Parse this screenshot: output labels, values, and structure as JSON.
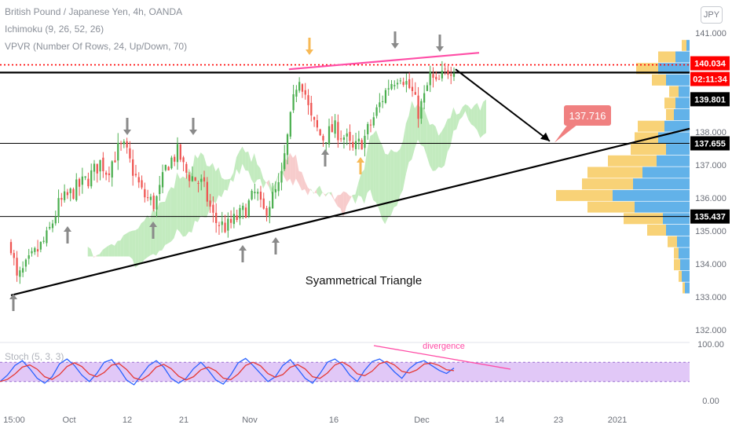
{
  "header": {
    "symbol_line": "British Pound / Japanese Yen, 4h, OANDA",
    "ichimoku_line": "Ichimoku (9, 26, 52, 26)",
    "vpvr_line": "VPVR (Number Of Rows, 24, Up/Down, 70)",
    "currency_badge": "JPY",
    "stoch_label": "Stoch (5, 3, 3)"
  },
  "colors": {
    "up_candle": "#26a69a",
    "bullish_candle": "#4caf50",
    "bearish_candle": "#ef5350",
    "cloud_bullish": "#b9e8b4",
    "cloud_bearish": "#f6c3c3",
    "pink_trendline": "#ff4da6",
    "vpvr_up": "#5aaee8",
    "vpvr_down": "#f8d070",
    "stoch_band": "#e1c8f7",
    "stoch_k": "#2962ff",
    "stoch_d": "#e53935",
    "arrow_gray": "#8a8a8a",
    "arrow_orange": "#f7b955",
    "target_label": "#f08080"
  },
  "annotations": {
    "pattern_label": "Syammetrical Triangle",
    "target_value": "137.716",
    "divergence_label": "divergence"
  },
  "price_axis": {
    "ticks": [
      "141.000",
      "140.000",
      "139.000",
      "138.000",
      "137.000",
      "136.000",
      "135.000",
      "134.000",
      "133.000",
      "132.000"
    ],
    "labels": {
      "last_price": "140.034",
      "countdown": "02:11:34",
      "resistance": "139.801",
      "mid_level": "137.655",
      "support": "135.437"
    }
  },
  "stoch_axis": {
    "ticks": [
      "100.00",
      "0.00"
    ]
  },
  "time_axis": {
    "ticks": [
      "15:00",
      "Oct",
      "12",
      "21",
      "Nov",
      "16",
      "Dec",
      "14",
      "23",
      "2021"
    ]
  },
  "chart_data": {
    "type": "candlestick",
    "title": "British Pound / Japanese Yen, 4h, OANDA",
    "ylim": [
      132.0,
      141.6
    ],
    "horizontal_levels": [
      {
        "value": 140.034,
        "style": "dotted",
        "color": "#ff0000"
      },
      {
        "value": 139.801,
        "style": "solid",
        "color": "#000000"
      },
      {
        "value": 137.655,
        "style": "solid",
        "color": "#000000"
      },
      {
        "value": 135.437,
        "style": "solid",
        "color": "#000000"
      }
    ],
    "trendlines": [
      {
        "name": "rising support",
        "from": {
          "date": "2020-09-24",
          "price": 133.05
        },
        "to": {
          "date": "2021-01-04",
          "price": 138.1
        }
      },
      {
        "name": "upper resistance",
        "from": {
          "date": "2020-11-11",
          "price": 139.9
        },
        "to": {
          "date": "2020-12-10",
          "price": 140.4
        }
      },
      {
        "name": "projected drop",
        "from": {
          "date": "2020-12-08",
          "price": 139.9
        },
        "to": {
          "date": "2020-12-20",
          "price": 137.7
        }
      }
    ],
    "target": {
      "price": 137.716
    },
    "price_path": [
      {
        "d": "2020-09-24",
        "p": 134.6
      },
      {
        "d": "2020-09-25",
        "p": 133.5
      },
      {
        "d": "2020-09-28",
        "p": 134.3
      },
      {
        "d": "2020-09-30",
        "p": 134.8
      },
      {
        "d": "2020-10-02",
        "p": 135.8
      },
      {
        "d": "2020-10-05",
        "p": 136.3
      },
      {
        "d": "2020-10-07",
        "p": 136.6
      },
      {
        "d": "2020-10-09",
        "p": 137.1
      },
      {
        "d": "2020-10-10",
        "p": 136.8
      },
      {
        "d": "2020-10-12",
        "p": 137.5
      },
      {
        "d": "2020-10-13",
        "p": 137.5
      },
      {
        "d": "2020-10-14",
        "p": 137.0
      },
      {
        "d": "2020-10-16",
        "p": 136.1
      },
      {
        "d": "2020-10-18",
        "p": 135.8
      },
      {
        "d": "2020-10-19",
        "p": 136.3
      },
      {
        "d": "2020-10-20",
        "p": 137.0
      },
      {
        "d": "2020-10-22",
        "p": 137.4
      },
      {
        "d": "2020-10-23",
        "p": 136.8
      },
      {
        "d": "2020-10-26",
        "p": 136.4
      },
      {
        "d": "2020-10-28",
        "p": 135.3
      },
      {
        "d": "2020-10-30",
        "p": 135.1
      },
      {
        "d": "2020-11-02",
        "p": 135.6
      },
      {
        "d": "2020-11-04",
        "p": 136.2
      },
      {
        "d": "2020-11-05",
        "p": 135.5
      },
      {
        "d": "2020-11-06",
        "p": 135.8
      },
      {
        "d": "2020-11-08",
        "p": 136.4
      },
      {
        "d": "2020-11-09",
        "p": 137.6
      },
      {
        "d": "2020-11-11",
        "p": 139.8
      },
      {
        "d": "2020-11-12",
        "p": 139.3
      },
      {
        "d": "2020-11-13",
        "p": 138.4
      },
      {
        "d": "2020-11-15",
        "p": 137.8
      },
      {
        "d": "2020-11-17",
        "p": 138.1
      },
      {
        "d": "2020-11-19",
        "p": 137.8
      },
      {
        "d": "2020-11-20",
        "p": 137.4
      },
      {
        "d": "2020-11-22",
        "p": 137.8
      },
      {
        "d": "2020-11-24",
        "p": 138.6
      },
      {
        "d": "2020-11-26",
        "p": 139.4
      },
      {
        "d": "2020-11-28",
        "p": 139.8
      },
      {
        "d": "2020-11-30",
        "p": 139.2
      },
      {
        "d": "2020-12-01",
        "p": 138.6
      },
      {
        "d": "2020-12-02",
        "p": 139.0
      },
      {
        "d": "2020-12-03",
        "p": 139.7
      },
      {
        "d": "2020-12-04",
        "p": 139.4
      },
      {
        "d": "2020-12-06",
        "p": 139.9
      },
      {
        "d": "2020-12-07",
        "p": 140.0
      }
    ],
    "volume_profile": {
      "rows": [
        {
          "price": 140.6,
          "up": 6,
          "down": 4
        },
        {
          "price": 140.25,
          "up": 22,
          "down": 18
        },
        {
          "price": 139.9,
          "up": 28,
          "down": 40
        },
        {
          "price": 139.55,
          "up": 18,
          "down": 30
        },
        {
          "price": 139.2,
          "up": 12,
          "down": 14
        },
        {
          "price": 138.85,
          "up": 14,
          "down": 18
        },
        {
          "price": 138.5,
          "up": 10,
          "down": 20
        },
        {
          "price": 138.15,
          "up": 34,
          "down": 32
        },
        {
          "price": 137.8,
          "up": 30,
          "down": 40
        },
        {
          "price": 137.45,
          "up": 45,
          "down": 30
        },
        {
          "price": 137.1,
          "up": 62,
          "down": 42
        },
        {
          "price": 136.75,
          "up": 70,
          "down": 60
        },
        {
          "price": 136.4,
          "up": 65,
          "down": 72
        },
        {
          "price": 136.05,
          "up": 72,
          "down": 98
        },
        {
          "price": 135.7,
          "up": 60,
          "down": 70
        },
        {
          "price": 135.35,
          "up": 50,
          "down": 34
        },
        {
          "price": 135.0,
          "up": 24,
          "down": 30
        },
        {
          "price": 134.65,
          "up": 12,
          "down": 16
        },
        {
          "price": 134.3,
          "up": 6,
          "down": 14
        },
        {
          "price": 133.95,
          "up": 8,
          "down": 12
        },
        {
          "price": 133.6,
          "up": 4,
          "down": 10
        },
        {
          "price": 133.25,
          "up": 3,
          "down": 6
        }
      ]
    },
    "stochastic": {
      "ylim": [
        0,
        100
      ],
      "band": [
        20,
        80
      ],
      "k_sample": [
        20,
        40,
        70,
        85,
        60,
        30,
        15,
        35,
        75,
        90,
        70,
        40,
        20,
        45,
        80,
        88,
        60,
        25,
        10,
        40,
        70,
        85,
        65,
        30,
        15,
        30,
        60,
        80,
        55,
        25,
        12,
        40,
        78,
        92,
        70,
        45,
        20,
        35,
        70,
        88,
        60,
        30,
        15,
        45,
        80,
        90,
        72,
        40,
        20,
        55,
        82,
        90,
        75,
        50,
        30,
        60,
        78,
        85,
        70,
        55,
        45,
        62
      ]
    }
  }
}
